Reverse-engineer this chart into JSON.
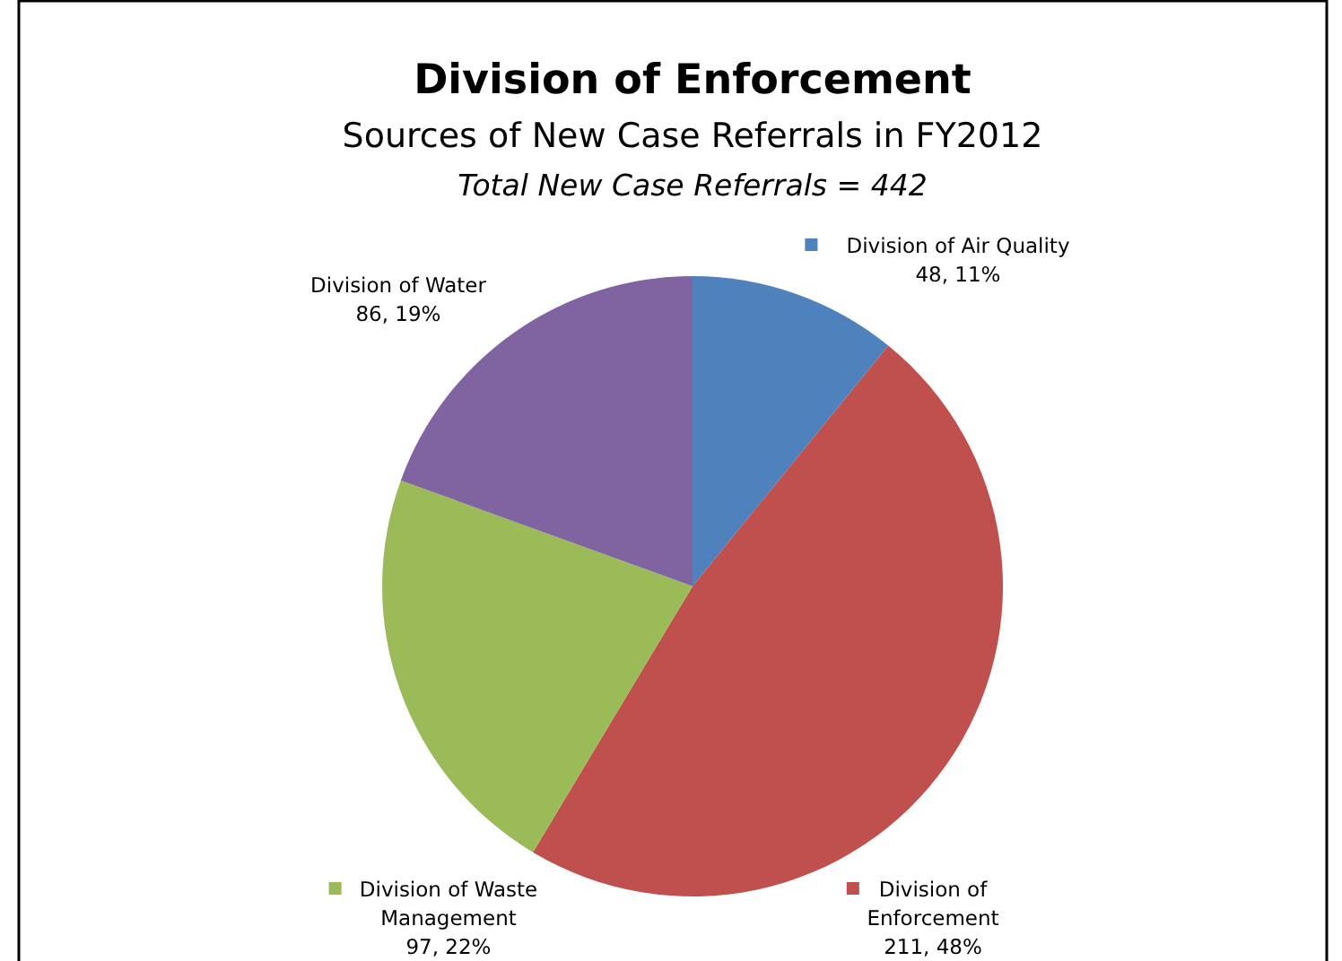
{
  "chart_data": {
    "type": "pie",
    "title": "Division of Enforcement",
    "subtitle": "Sources of New Case Referrals in FY2012",
    "annotations": [
      "Total New Case Referrals = 442"
    ],
    "categories": [
      "Division of Air Quality",
      "Division of Enforcement",
      "Division of Waste Management",
      "Division of Water"
    ],
    "values": [
      48,
      211,
      97,
      86
    ],
    "value_labels": [
      "48, 11%",
      "211, 48%",
      "97, 22%",
      "86, 19%"
    ],
    "colors": [
      "#4f81bd",
      "#c0504d",
      "#9bbb59",
      "#8064a2"
    ],
    "legend": "right"
  }
}
